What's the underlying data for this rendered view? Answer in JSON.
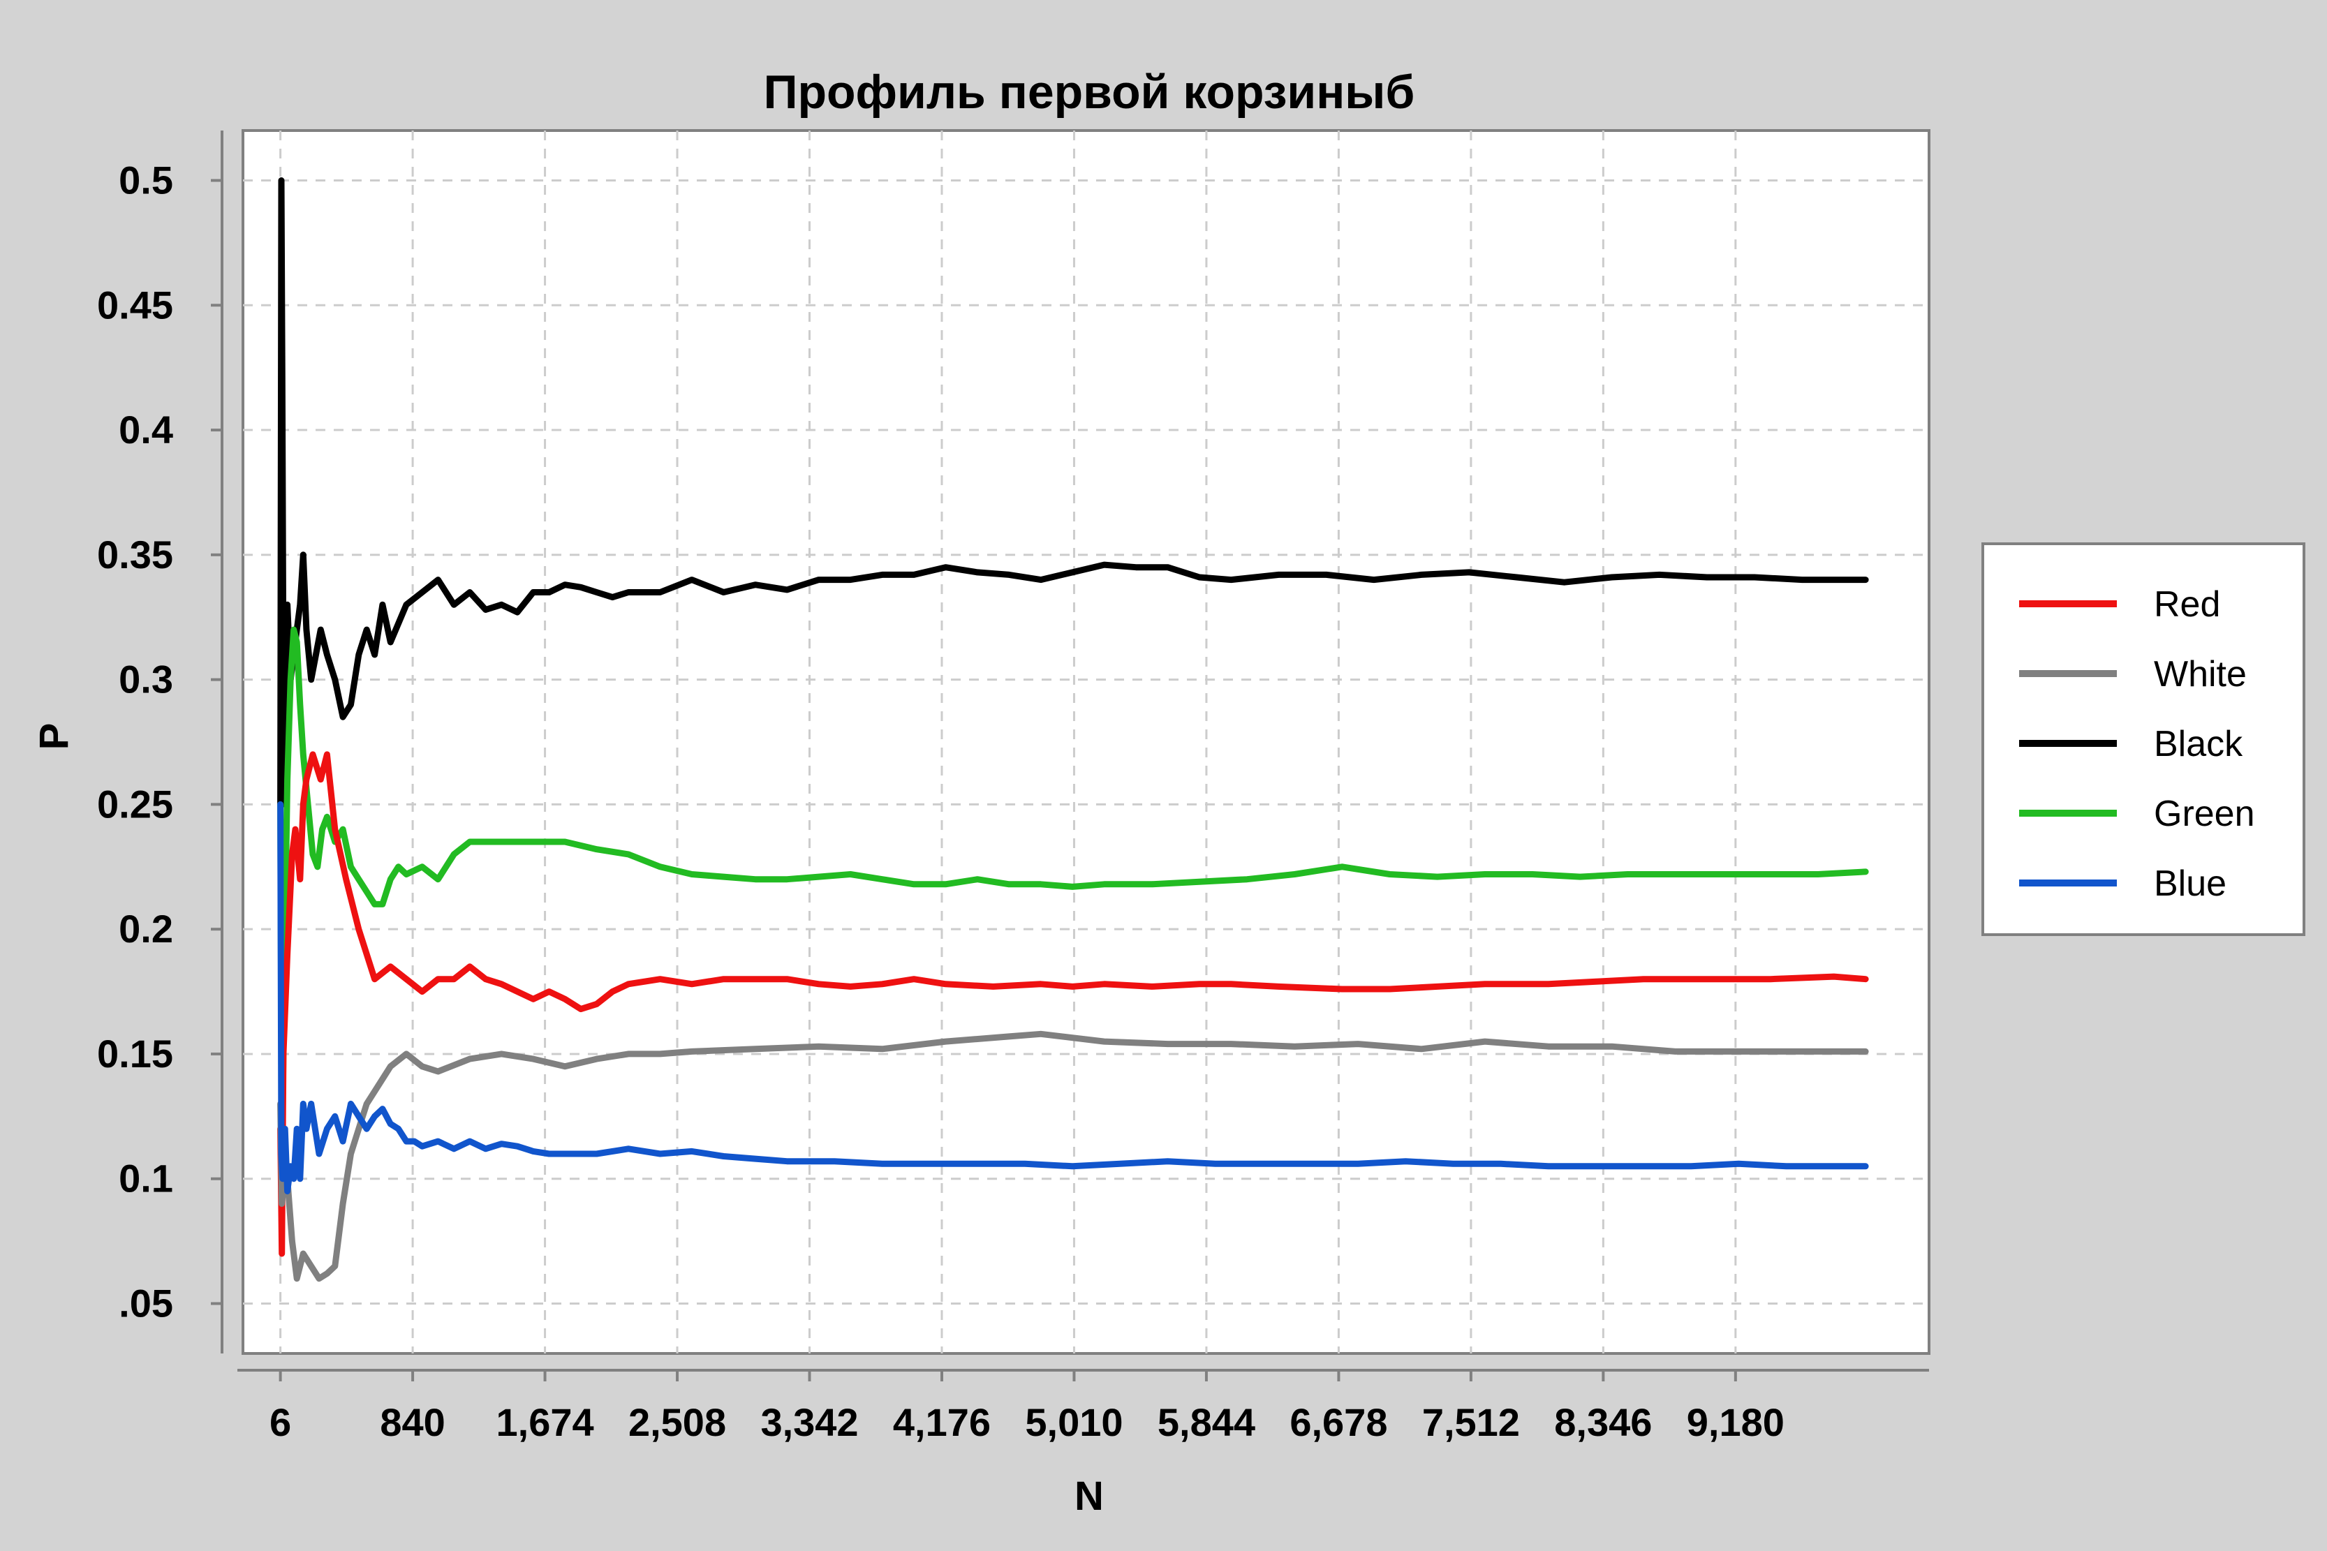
{
  "chart_data": {
    "type": "line",
    "title": "Профиль первой корзиныб",
    "xlabel": "N",
    "ylabel": "P",
    "xlim": [
      -230,
      10400
    ],
    "ylim": [
      0.03,
      0.52
    ],
    "x_ticks": [
      6,
      840,
      1674,
      2508,
      3342,
      4176,
      5010,
      5844,
      6678,
      7512,
      8346,
      9180
    ],
    "x_tick_labels": [
      "6",
      "840",
      "1,674",
      "2,508",
      "3,342",
      "4,176",
      "5,010",
      "5,844",
      "6,678",
      "7,512",
      "8,346",
      "9,180"
    ],
    "y_ticks": [
      0.05,
      0.1,
      0.15,
      0.2,
      0.25,
      0.3,
      0.35,
      0.4,
      0.45,
      0.5
    ],
    "y_tick_labels": [
      ".05",
      "0.1",
      "0.15",
      "0.2",
      "0.25",
      "0.3",
      "0.35",
      "0.4",
      "0.45",
      "0.5"
    ],
    "grid": true,
    "legend_position": "right",
    "series": [
      {
        "name": "Red",
        "color": "#ee1111",
        "x": [
          6,
          15,
          25,
          50,
          80,
          100,
          130,
          150,
          170,
          210,
          260,
          300,
          350,
          420,
          500,
          600,
          700,
          800,
          900,
          1000,
          1100,
          1200,
          1300,
          1400,
          1500,
          1600,
          1700,
          1800,
          1900,
          2000,
          2100,
          2200,
          2400,
          2600,
          2800,
          3000,
          3200,
          3400,
          3600,
          3800,
          4000,
          4200,
          4500,
          4800,
          5000,
          5200,
          5500,
          5800,
          6000,
          6300,
          6700,
          7000,
          7300,
          7600,
          8000,
          8300,
          8600,
          9000,
          9400,
          9800,
          10000
        ],
        "values": [
          0.12,
          0.07,
          0.15,
          0.19,
          0.23,
          0.24,
          0.22,
          0.25,
          0.26,
          0.27,
          0.26,
          0.27,
          0.24,
          0.22,
          0.2,
          0.18,
          0.185,
          0.18,
          0.175,
          0.18,
          0.18,
          0.185,
          0.18,
          0.178,
          0.175,
          0.172,
          0.175,
          0.172,
          0.168,
          0.17,
          0.175,
          0.178,
          0.18,
          0.178,
          0.18,
          0.18,
          0.18,
          0.178,
          0.177,
          0.178,
          0.18,
          0.178,
          0.177,
          0.178,
          0.177,
          0.178,
          0.177,
          0.178,
          0.178,
          0.177,
          0.176,
          0.176,
          0.177,
          0.178,
          0.178,
          0.179,
          0.18,
          0.18,
          0.18,
          0.181,
          0.18
        ]
      },
      {
        "name": "White",
        "color": "#808080",
        "x": [
          6,
          15,
          30,
          50,
          80,
          110,
          150,
          200,
          250,
          300,
          350,
          400,
          450,
          500,
          550,
          600,
          700,
          800,
          900,
          1000,
          1200,
          1400,
          1600,
          1800,
          2000,
          2200,
          2400,
          2600,
          3000,
          3400,
          3800,
          4200,
          4600,
          4800,
          5200,
          5600,
          6000,
          6400,
          6800,
          7200,
          7600,
          8000,
          8400,
          8800,
          9200,
          9600,
          10000
        ],
        "values": [
          0.13,
          0.09,
          0.1,
          0.1,
          0.075,
          0.06,
          0.07,
          0.065,
          0.06,
          0.062,
          0.065,
          0.09,
          0.11,
          0.12,
          0.13,
          0.135,
          0.145,
          0.15,
          0.145,
          0.143,
          0.148,
          0.15,
          0.148,
          0.145,
          0.148,
          0.15,
          0.15,
          0.151,
          0.152,
          0.153,
          0.152,
          0.155,
          0.157,
          0.158,
          0.155,
          0.154,
          0.154,
          0.153,
          0.154,
          0.152,
          0.155,
          0.153,
          0.153,
          0.151,
          0.151,
          0.151,
          0.151
        ]
      },
      {
        "name": "Black",
        "color": "#000000",
        "x": [
          6,
          12,
          18,
          25,
          35,
          50,
          70,
          90,
          110,
          130,
          150,
          170,
          200,
          230,
          260,
          300,
          350,
          400,
          450,
          500,
          550,
          600,
          650,
          700,
          800,
          900,
          1000,
          1100,
          1200,
          1300,
          1400,
          1500,
          1600,
          1700,
          1800,
          1900,
          2000,
          2100,
          2200,
          2400,
          2600,
          2800,
          3000,
          3200,
          3400,
          3600,
          3800,
          4000,
          4200,
          4400,
          4600,
          4800,
          5000,
          5200,
          5400,
          5600,
          5800,
          6000,
          6300,
          6600,
          6900,
          7200,
          7500,
          7800,
          8100,
          8400,
          8700,
          9000,
          9300,
          9600,
          9900,
          10000
        ],
        "values": [
          0.25,
          0.5,
          0.42,
          0.3,
          0.25,
          0.33,
          0.3,
          0.31,
          0.32,
          0.33,
          0.35,
          0.32,
          0.3,
          0.31,
          0.32,
          0.31,
          0.3,
          0.285,
          0.29,
          0.31,
          0.32,
          0.31,
          0.33,
          0.315,
          0.33,
          0.335,
          0.34,
          0.33,
          0.335,
          0.328,
          0.33,
          0.327,
          0.335,
          0.335,
          0.338,
          0.337,
          0.335,
          0.333,
          0.335,
          0.335,
          0.34,
          0.335,
          0.338,
          0.336,
          0.34,
          0.34,
          0.342,
          0.342,
          0.345,
          0.343,
          0.342,
          0.34,
          0.343,
          0.346,
          0.345,
          0.345,
          0.341,
          0.34,
          0.342,
          0.342,
          0.34,
          0.342,
          0.343,
          0.341,
          0.339,
          0.341,
          0.342,
          0.341,
          0.341,
          0.34,
          0.34,
          0.34
        ]
      },
      {
        "name": "Green",
        "color": "#22bb22",
        "x": [
          6,
          15,
          30,
          50,
          70,
          90,
          110,
          130,
          150,
          180,
          210,
          240,
          270,
          300,
          350,
          400,
          450,
          500,
          550,
          600,
          650,
          700,
          750,
          800,
          900,
          1000,
          1100,
          1200,
          1300,
          1400,
          1600,
          1800,
          2000,
          2200,
          2400,
          2600,
          2800,
          3000,
          3200,
          3400,
          3600,
          3800,
          4000,
          4200,
          4400,
          4600,
          4800,
          5000,
          5200,
          5500,
          5800,
          6100,
          6400,
          6700,
          7000,
          7300,
          7600,
          7900,
          8200,
          8500,
          8800,
          9100,
          9400,
          9700,
          10000
        ],
        "values": [
          0.25,
          0.1,
          0.18,
          0.26,
          0.3,
          0.32,
          0.315,
          0.29,
          0.27,
          0.25,
          0.23,
          0.225,
          0.24,
          0.245,
          0.235,
          0.24,
          0.225,
          0.22,
          0.215,
          0.21,
          0.21,
          0.22,
          0.225,
          0.222,
          0.225,
          0.22,
          0.23,
          0.235,
          0.235,
          0.235,
          0.235,
          0.235,
          0.232,
          0.23,
          0.225,
          0.222,
          0.221,
          0.22,
          0.22,
          0.221,
          0.222,
          0.22,
          0.218,
          0.218,
          0.22,
          0.218,
          0.218,
          0.217,
          0.218,
          0.218,
          0.219,
          0.22,
          0.222,
          0.225,
          0.222,
          0.221,
          0.222,
          0.222,
          0.221,
          0.222,
          0.222,
          0.222,
          0.222,
          0.222,
          0.223
        ]
      },
      {
        "name": "Blue",
        "color": "#1155cc",
        "x": [
          6,
          12,
          20,
          35,
          50,
          70,
          90,
          110,
          130,
          150,
          170,
          200,
          250,
          300,
          350,
          400,
          450,
          500,
          550,
          600,
          650,
          700,
          750,
          800,
          850,
          900,
          1000,
          1100,
          1200,
          1300,
          1400,
          1500,
          1600,
          1700,
          1800,
          2000,
          2200,
          2400,
          2600,
          2800,
          3000,
          3200,
          3500,
          3800,
          4100,
          4400,
          4700,
          5000,
          5300,
          5600,
          5900,
          6200,
          6500,
          6800,
          7100,
          7400,
          7700,
          8000,
          8300,
          8600,
          8900,
          9200,
          9500,
          9800,
          10000
        ],
        "values": [
          0.25,
          0.11,
          0.1,
          0.12,
          0.095,
          0.105,
          0.1,
          0.12,
          0.1,
          0.13,
          0.12,
          0.13,
          0.11,
          0.12,
          0.125,
          0.115,
          0.13,
          0.125,
          0.12,
          0.125,
          0.128,
          0.122,
          0.12,
          0.115,
          0.115,
          0.113,
          0.115,
          0.112,
          0.115,
          0.112,
          0.114,
          0.113,
          0.111,
          0.11,
          0.11,
          0.11,
          0.112,
          0.11,
          0.111,
          0.109,
          0.108,
          0.107,
          0.107,
          0.106,
          0.106,
          0.106,
          0.106,
          0.105,
          0.106,
          0.107,
          0.106,
          0.106,
          0.106,
          0.106,
          0.107,
          0.106,
          0.106,
          0.105,
          0.105,
          0.105,
          0.105,
          0.106,
          0.105,
          0.105,
          0.105
        ]
      }
    ]
  }
}
